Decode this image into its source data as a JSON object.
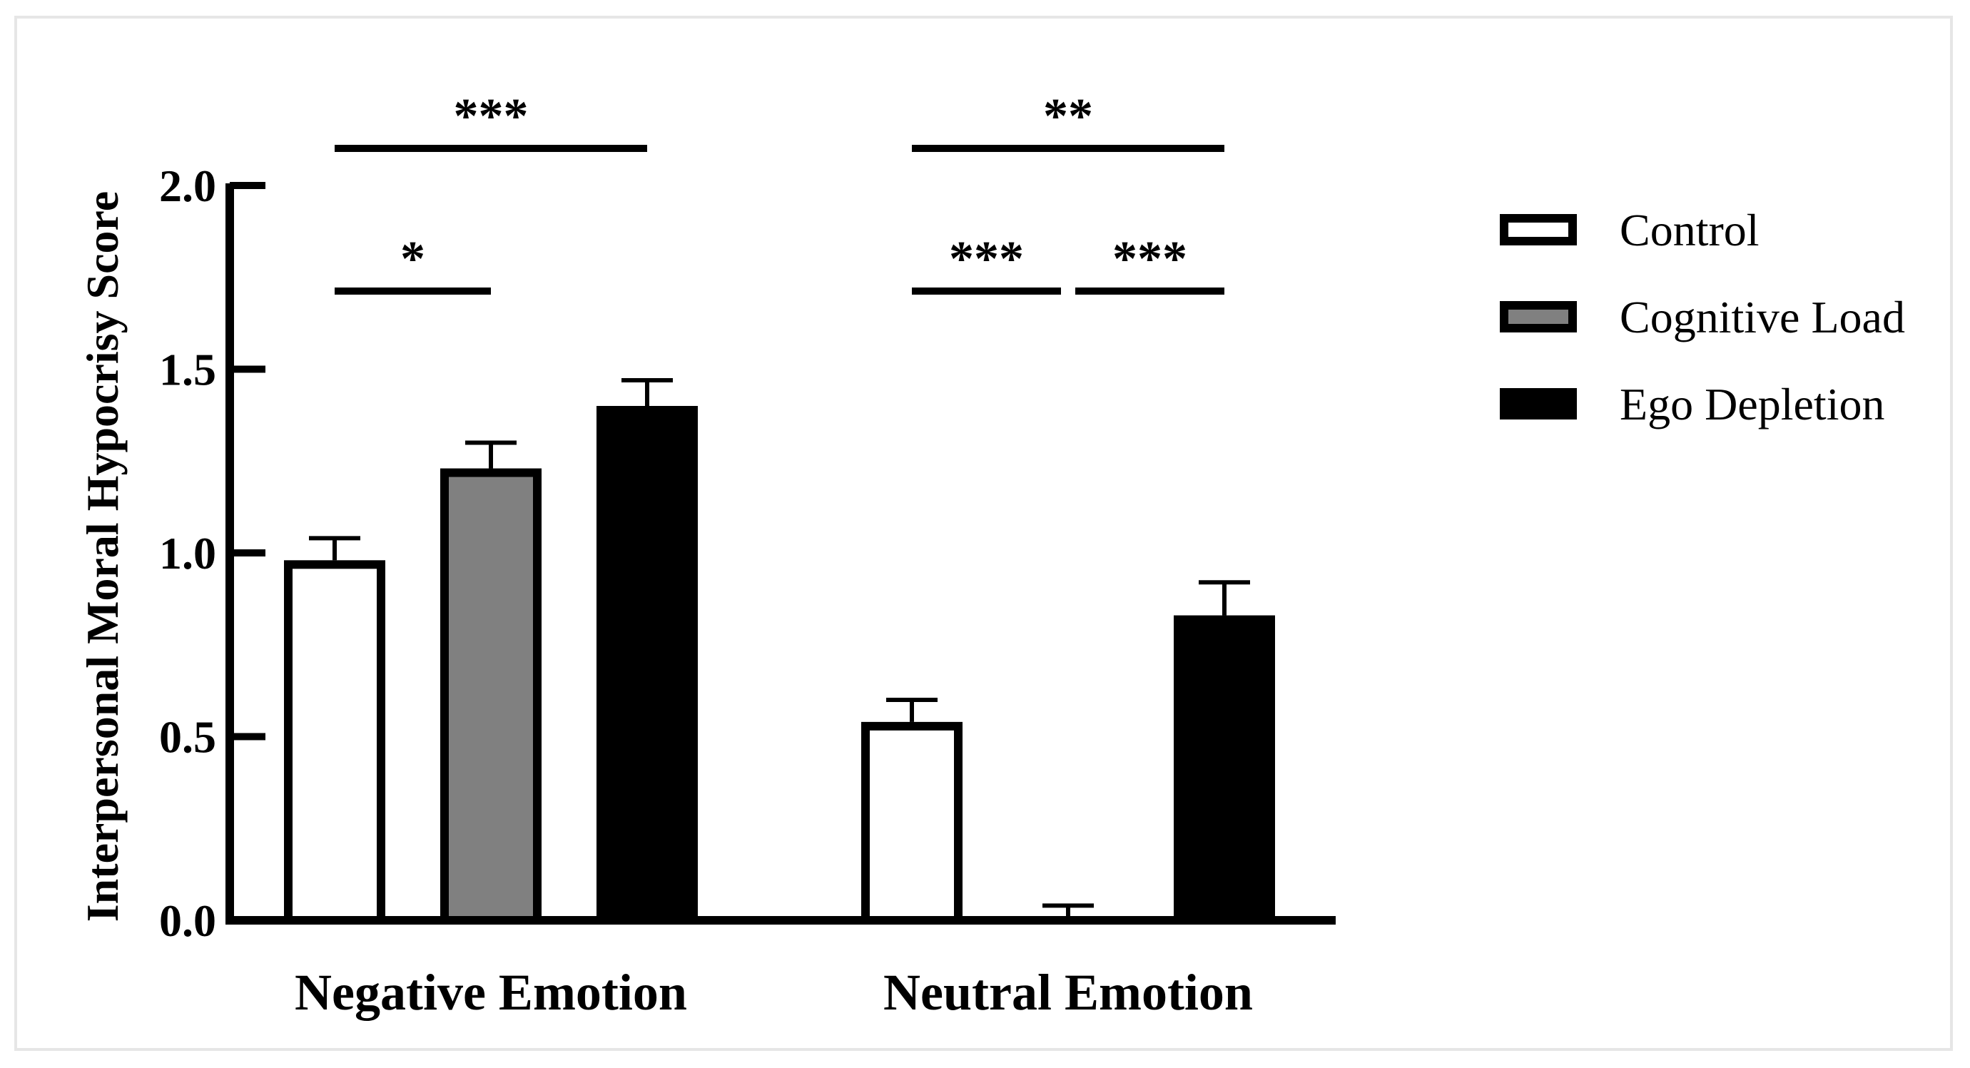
{
  "chart_data": {
    "type": "bar",
    "title": "",
    "xlabel": "",
    "ylabel": "Interpersonal Moral Hypocrisy Score",
    "ylim": [
      0,
      2.0
    ],
    "yticks": [
      "0.0",
      "0.5",
      "1.0",
      "1.5",
      "2.0"
    ],
    "ytick_values": [
      0,
      0.5,
      1.0,
      1.5,
      2.0
    ],
    "categories": [
      "Negative Emotion",
      "Neutral Emotion"
    ],
    "series": [
      {
        "name": "Control",
        "values": [
          0.98,
          0.54
        ],
        "errors": [
          0.06,
          0.06
        ],
        "fill": "#ffffff"
      },
      {
        "name": "Cognitive Load",
        "values": [
          1.23,
          0.0
        ],
        "errors": [
          0.07,
          0.04
        ],
        "fill": "#808080"
      },
      {
        "name": "Ego Depletion",
        "values": [
          1.4,
          0.83
        ],
        "errors": [
          0.07,
          0.09
        ],
        "fill": "#000000"
      }
    ],
    "significance": [
      {
        "category": 0,
        "from": 0,
        "to": 2,
        "label": "***"
      },
      {
        "category": 0,
        "from": 0,
        "to": 1,
        "label": "*"
      },
      {
        "category": 1,
        "from": 0,
        "to": 2,
        "label": "**"
      },
      {
        "category": 1,
        "from": 0,
        "to": 1,
        "label": "***"
      },
      {
        "category": 1,
        "from": 1,
        "to": 2,
        "label": "***"
      }
    ],
    "legend": {
      "position": "right",
      "entries": [
        "Control",
        "Cognitive Load",
        "Ego Depletion"
      ]
    },
    "grid": false
  }
}
